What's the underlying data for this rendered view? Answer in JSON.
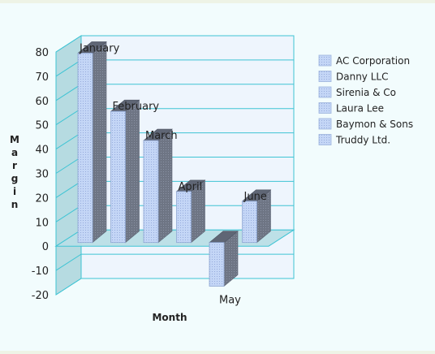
{
  "chart_data": {
    "type": "bar",
    "categories": [
      "January",
      "February",
      "March",
      "April",
      "May",
      "June"
    ],
    "values": [
      78,
      54,
      42,
      21,
      -18,
      17
    ],
    "ylim": [
      -20,
      80
    ],
    "yticks": [
      "80",
      "70",
      "60",
      "50",
      "40",
      "30",
      "20",
      "10",
      "0",
      "-10",
      "-20"
    ],
    "ylabel": "Margin",
    "xlabel": "Month",
    "grid": true,
    "legend_position": "right",
    "legend": [
      "AC Corporation",
      "Danny LLC",
      "Sirenia & Co",
      "Laura Lee",
      "Baymon & Sons",
      "Truddy Ltd."
    ],
    "colors": {
      "bar_front": "#c4d6f6",
      "bar_side": "#6e7584",
      "bar_top": "#5f6675",
      "wall": "#eef5fd",
      "left_wall": "#b6dbe1",
      "floor": "#b9dee6",
      "grid": "#3fc4d4",
      "background": "#f2fcfd"
    }
  }
}
